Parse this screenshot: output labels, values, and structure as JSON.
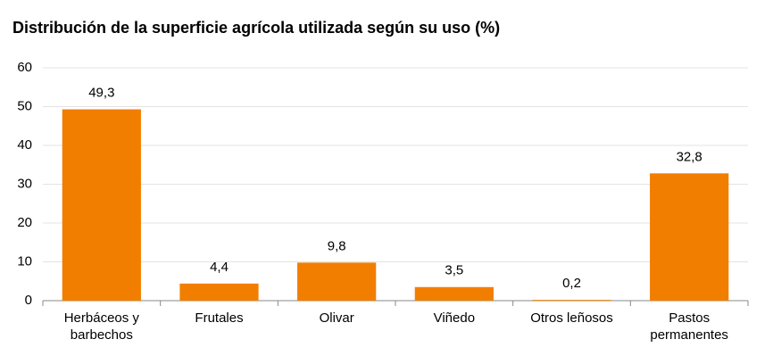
{
  "chart_data": {
    "type": "bar",
    "title": "Distribución de la superficie agrícola utilizada según su uso (%)",
    "categories": [
      "Herbáceos y barbechos",
      "Frutales",
      "Olivar",
      "Viñedo",
      "Otros leñosos",
      "Pastos permanentes"
    ],
    "values": [
      49.3,
      4.4,
      9.8,
      3.5,
      0.2,
      32.8
    ],
    "value_labels": [
      "49,3",
      "4,4",
      "9,8",
      "3,5",
      "0,2",
      "32,8"
    ],
    "color": "#f27e00",
    "ylim": [
      0,
      60
    ],
    "yticks": [
      0,
      10,
      20,
      30,
      40,
      50,
      60
    ],
    "grid": true
  }
}
